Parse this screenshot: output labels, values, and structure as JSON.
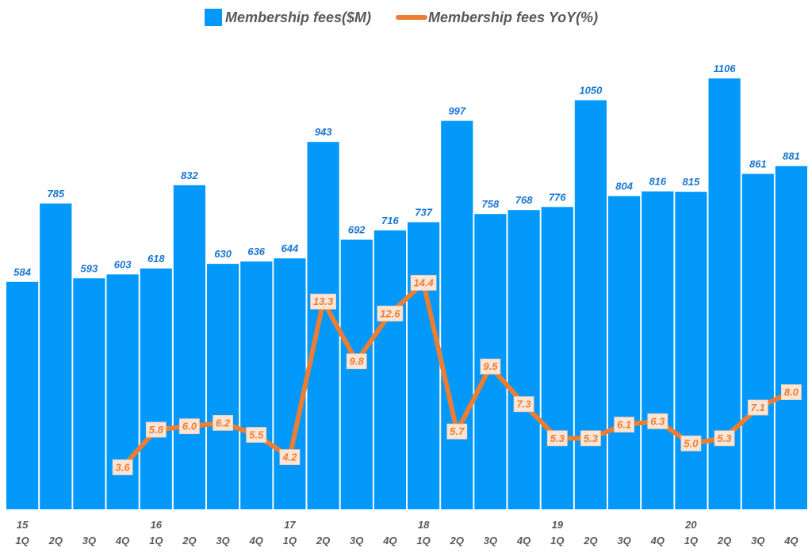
{
  "chart_data": {
    "type": "bar",
    "title": "",
    "xlabel": "",
    "ylabel": "",
    "colors": {
      "bar": "#0399fb",
      "line": "#ed7d31",
      "bar_label": "#1a75d2",
      "label_bg": "#fbe5d6",
      "axis_text": "#595959"
    },
    "legend": [
      {
        "name": "Membership fees($M)",
        "kind": "bar"
      },
      {
        "name": "Membership fees YoY(%)",
        "kind": "line"
      }
    ],
    "categories": [
      "1Q",
      "2Q",
      "3Q",
      "4Q",
      "1Q",
      "2Q",
      "3Q",
      "4Q",
      "1Q",
      "2Q",
      "3Q",
      "4Q",
      "1Q",
      "2Q",
      "3Q",
      "4Q",
      "1Q",
      "2Q",
      "3Q",
      "4Q",
      "1Q",
      "2Q",
      "3Q",
      "4Q"
    ],
    "years": [
      "15",
      "",
      "",
      "",
      "16",
      "",
      "",
      "",
      "17",
      "",
      "",
      "",
      "18",
      "",
      "",
      "",
      "19",
      "",
      "",
      "",
      "20",
      "",
      "",
      ""
    ],
    "series": [
      {
        "name": "Membership fees($M)",
        "type": "bar",
        "values": [
          584,
          785,
          593,
          603,
          618,
          832,
          630,
          636,
          644,
          943,
          692,
          716,
          737,
          997,
          758,
          768,
          776,
          1050,
          804,
          816,
          815,
          1106,
          861,
          881
        ],
        "labels": [
          "584",
          "785",
          "593",
          "603",
          "618",
          "832",
          "630",
          "636",
          "644",
          "943",
          "692",
          "716",
          "737",
          "997",
          "758",
          "768",
          "776",
          "1050",
          "804",
          "816",
          "815",
          "1106",
          "861",
          "881"
        ]
      },
      {
        "name": "Membership fees YoY(%)",
        "type": "line",
        "values": [
          null,
          null,
          null,
          3.6,
          5.8,
          6.0,
          6.2,
          5.5,
          4.2,
          13.3,
          9.8,
          12.6,
          14.4,
          5.7,
          9.5,
          7.3,
          5.3,
          5.3,
          6.1,
          6.3,
          5.0,
          5.3,
          7.1,
          8.0
        ],
        "labels": [
          "",
          "",
          "",
          "3.6",
          "5.8",
          "6.0",
          "6.2",
          "5.5",
          "4.2",
          "13.3",
          "9.8",
          "12.6",
          "14.4",
          "5.7",
          "9.5",
          "7.3",
          "5.3",
          "5.3",
          "6.1",
          "6.3",
          "5.0",
          "5.3",
          "7.1",
          "8.0"
        ]
      }
    ]
  }
}
